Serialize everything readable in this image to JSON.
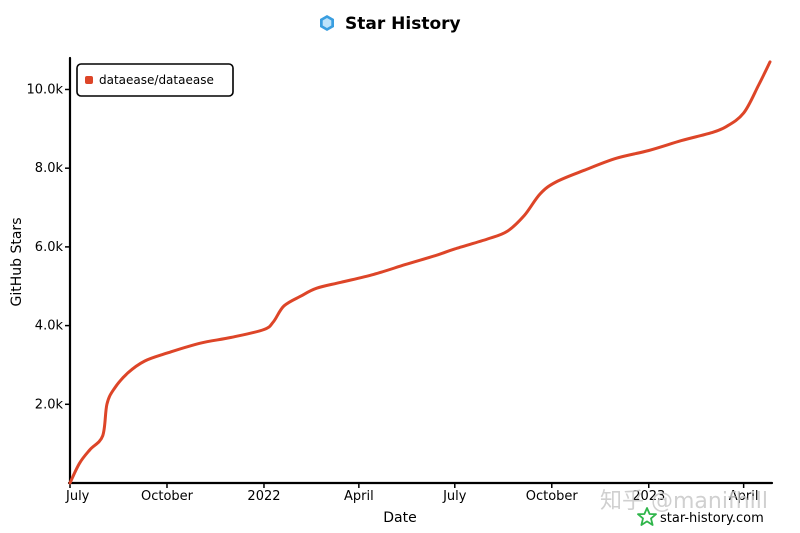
{
  "chart_data": {
    "type": "line",
    "title": "Star History",
    "xlabel": "Date",
    "ylabel": "GitHub Stars",
    "x_tick_labels": [
      "July",
      "October",
      "2022",
      "April",
      "July",
      "October",
      "2023",
      "April"
    ],
    "y_tick_labels": [
      "2.0k",
      "4.0k",
      "6.0k",
      "8.0k",
      "10.0k"
    ],
    "ylim": [
      0,
      10800
    ],
    "legend_position": "top-left",
    "grid": false,
    "series": [
      {
        "name": "dataease/dataease",
        "color": "#dd4528",
        "x": [
          "2021-07-01",
          "2021-07-10",
          "2021-07-20",
          "2021-08-01",
          "2021-08-05",
          "2021-08-12",
          "2021-08-25",
          "2021-09-10",
          "2021-10-01",
          "2021-11-01",
          "2021-12-01",
          "2022-01-01",
          "2022-01-10",
          "2022-01-20",
          "2022-02-05",
          "2022-02-20",
          "2022-03-15",
          "2022-04-15",
          "2022-05-15",
          "2022-06-15",
          "2022-07-01",
          "2022-08-01",
          "2022-08-20",
          "2022-09-05",
          "2022-09-20",
          "2022-10-05",
          "2022-11-01",
          "2022-12-01",
          "2023-01-01",
          "2023-02-01",
          "2023-03-01",
          "2023-03-15",
          "2023-04-01",
          "2023-04-15",
          "2023-04-26"
        ],
        "y": [
          0,
          500,
          850,
          1200,
          2000,
          2400,
          2800,
          3100,
          3300,
          3550,
          3700,
          3900,
          4100,
          4500,
          4750,
          4950,
          5100,
          5300,
          5550,
          5800,
          5950,
          6200,
          6400,
          6800,
          7350,
          7650,
          7950,
          8250,
          8450,
          8700,
          8900,
          9050,
          9400,
          10100,
          10700
        ]
      }
    ]
  },
  "branding": {
    "brand_text": "star-history.com",
    "watermark_text": "知乎 @manifhill"
  }
}
